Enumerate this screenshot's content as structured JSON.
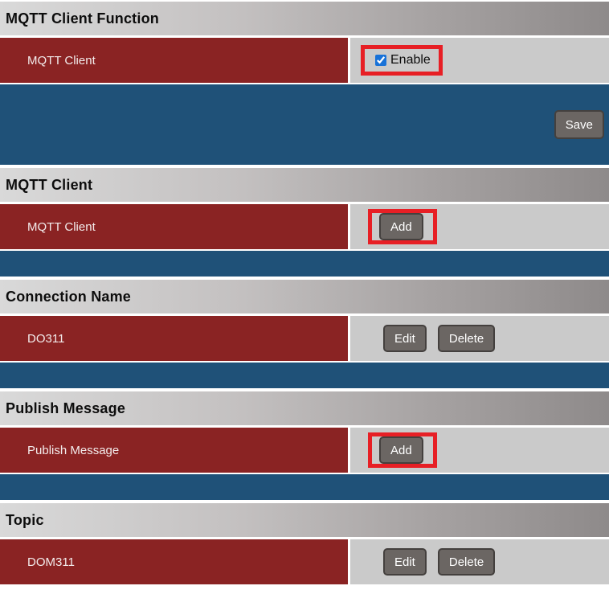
{
  "colors": {
    "header_gradient_left": "#d9d9d9",
    "header_gradient_right": "#8e8a8a",
    "row_red": "#8a2323",
    "row_gray": "#cacaca",
    "blue_section": "#1f5178",
    "button_gray": "#6b6663",
    "button_border": "#44403e",
    "highlight_red": "#e71f25",
    "checkbox_blue": "#1872d8"
  },
  "mqtt_function": {
    "title": "MQTT Client Function",
    "row_label": "MQTT Client",
    "enable_label": "Enable",
    "enable_checked": "checked",
    "save_label": "Save"
  },
  "mqtt_client": {
    "title": "MQTT Client",
    "row_label": "MQTT Client",
    "add_label": "Add"
  },
  "connection": {
    "title": "Connection Name",
    "row_label": "DO311",
    "edit_label": "Edit",
    "delete_label": "Delete"
  },
  "publish": {
    "title": "Publish Message",
    "row_label": "Publish Message",
    "add_label": "Add"
  },
  "topic": {
    "title": "Topic",
    "row_label": "DOM311",
    "edit_label": "Edit",
    "delete_label": "Delete"
  }
}
